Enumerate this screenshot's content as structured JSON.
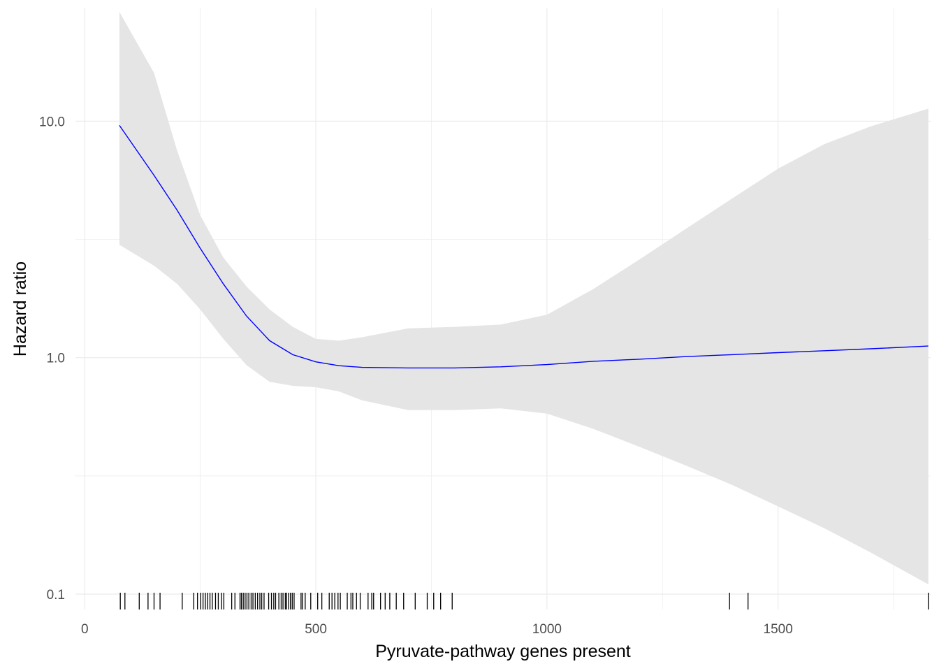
{
  "chart_data": {
    "type": "line",
    "title": "",
    "xlabel": "Pyruvate-pathway genes present",
    "ylabel": "Hazard ratio",
    "x_scale": "linear",
    "y_scale": "log10",
    "xlim": [
      -20,
      1830
    ],
    "ylim": [
      0.1,
      30
    ],
    "x_ticks": [
      0,
      500,
      1000,
      1500
    ],
    "x_tick_labels": [
      "0",
      "500",
      "1000",
      "1500"
    ],
    "y_ticks": [
      0.1,
      1.0,
      10.0
    ],
    "y_tick_labels": [
      "0.1",
      "1.0",
      "10.0"
    ],
    "grid": true,
    "legend": "none",
    "colors": {
      "line": "#0000ff",
      "ribbon": "#e5e5e5",
      "grid": "#ebebeb",
      "rug": "#000000"
    },
    "series": [
      {
        "x": [
          75,
          150,
          200,
          250,
          300,
          350,
          400,
          450,
          500,
          550,
          600,
          700,
          800,
          900,
          1000,
          1100,
          1200,
          1300,
          1400,
          1500,
          1600,
          1700,
          1825
        ],
        "y": [
          9.6,
          5.9,
          4.2,
          2.9,
          2.05,
          1.5,
          1.18,
          1.03,
          0.96,
          0.925,
          0.91,
          0.905,
          0.905,
          0.915,
          0.935,
          0.965,
          0.985,
          1.01,
          1.03,
          1.05,
          1.07,
          1.09,
          1.12
        ],
        "lower": [
          3.0,
          2.45,
          2.05,
          1.6,
          1.2,
          0.93,
          0.79,
          0.76,
          0.75,
          0.72,
          0.66,
          0.6,
          0.6,
          0.61,
          0.58,
          0.5,
          0.42,
          0.35,
          0.29,
          0.235,
          0.19,
          0.15,
          0.11
        ],
        "upper": [
          29,
          16,
          7.5,
          4.0,
          2.65,
          2.0,
          1.6,
          1.35,
          1.2,
          1.18,
          1.22,
          1.33,
          1.35,
          1.38,
          1.52,
          1.95,
          2.6,
          3.5,
          4.7,
          6.3,
          8.0,
          9.5,
          11.3
        ]
      }
    ],
    "rug": [
      77,
      87,
      118,
      137,
      150,
      163,
      211,
      236,
      244,
      251,
      256,
      261,
      266,
      271,
      276,
      283,
      289,
      296,
      301,
      318,
      325,
      336,
      339,
      343,
      347,
      351,
      355,
      360,
      364,
      369,
      374,
      379,
      383,
      388,
      398,
      404,
      409,
      413,
      420,
      425,
      429,
      434,
      437,
      441,
      445,
      449,
      453,
      468,
      471,
      477,
      489,
      504,
      513,
      529,
      535,
      541,
      548,
      553,
      568,
      576,
      580,
      588,
      596,
      613,
      621,
      625,
      640,
      650,
      660,
      674,
      690,
      715,
      741,
      755,
      770,
      795,
      1395,
      1435,
      1825
    ]
  }
}
